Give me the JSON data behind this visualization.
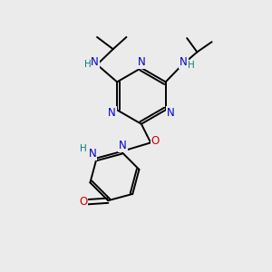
{
  "bg_color": "#ebebeb",
  "atom_colors": {
    "C": "#000000",
    "N": "#0000cc",
    "O": "#cc0000",
    "H": "#008080"
  },
  "bond_color": "#000000",
  "bond_width": 1.4,
  "font_size": 8.5,
  "fig_width": 3.0,
  "fig_height": 3.0,
  "dpi": 100
}
